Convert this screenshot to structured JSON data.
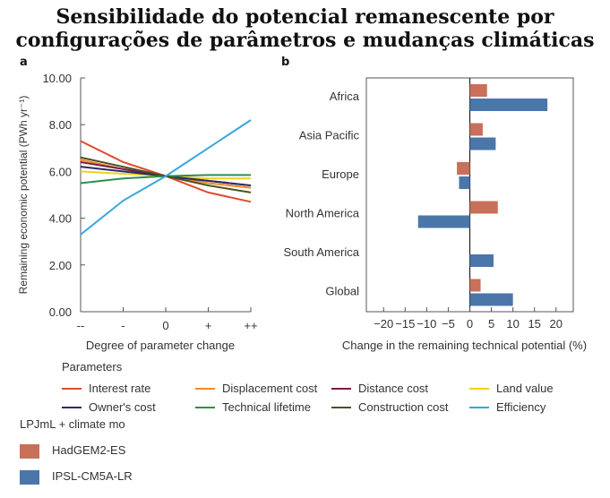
{
  "title_line1": "Sensibilidade do potencial remanescente por",
  "title_line2": "configurações de parâmetros e mudanças climáticas",
  "chart_data": [
    {
      "panel": "a",
      "type": "line",
      "xlabel": "Degree of parameter change",
      "ylabel": "Remaining economic potential (PWh yr⁻¹)",
      "x_categories": [
        "--",
        "-",
        "0",
        "+",
        "++"
      ],
      "yticks": [
        "0.00",
        "2.00",
        "4.00",
        "6.00",
        "8.00",
        "10.00"
      ],
      "ylim": [
        0,
        10
      ],
      "series": [
        {
          "name": "Interest rate",
          "color": "#e04a2e",
          "values": [
            7.3,
            6.4,
            5.8,
            5.1,
            4.7
          ]
        },
        {
          "name": "Displacement cost",
          "color": "#ef8a2a",
          "values": [
            6.5,
            6.1,
            5.8,
            5.5,
            5.3
          ]
        },
        {
          "name": "Distance cost",
          "color": "#7a1e4a",
          "values": [
            6.4,
            6.1,
            5.8,
            5.6,
            5.4
          ]
        },
        {
          "name": "Land value",
          "color": "#f0d020",
          "values": [
            6.0,
            5.9,
            5.8,
            5.7,
            5.7
          ]
        },
        {
          "name": "Owner's cost",
          "color": "#2a2a6a",
          "values": [
            6.2,
            6.0,
            5.8,
            5.6,
            5.4
          ]
        },
        {
          "name": "Technical lifetime",
          "color": "#2e8f4a",
          "values": [
            5.5,
            5.7,
            5.8,
            5.85,
            5.85
          ]
        },
        {
          "name": "Construction cost",
          "color": "#4a5220",
          "values": [
            6.6,
            6.2,
            5.8,
            5.4,
            5.1
          ]
        },
        {
          "name": "Efficiency",
          "color": "#3aa6da",
          "values": [
            3.3,
            4.75,
            5.8,
            7.0,
            8.2
          ]
        }
      ]
    },
    {
      "panel": "b",
      "type": "bar",
      "orientation": "horizontal",
      "xlabel": "Change in the remaining technical potential (%)",
      "xticks": [
        -20,
        -15,
        -10,
        -5,
        0,
        5,
        10,
        15,
        20
      ],
      "xlim": [
        -24,
        24
      ],
      "categories": [
        "Africa",
        "Asia Pacific",
        "Europe",
        "North America",
        "South America",
        "Global"
      ],
      "series": [
        {
          "name": "HadGEM2-ES",
          "color": "#c8705a",
          "values": [
            4,
            3,
            -3,
            6.5,
            0,
            2.5
          ]
        },
        {
          "name": "IPSL-CM5A-LR",
          "color": "#4a76aa",
          "values": [
            18,
            6,
            -2.5,
            -12,
            5.5,
            10
          ]
        }
      ]
    }
  ],
  "legend": {
    "parameters_title": "Parameters",
    "model_title": "LPJmL + climate mo"
  }
}
